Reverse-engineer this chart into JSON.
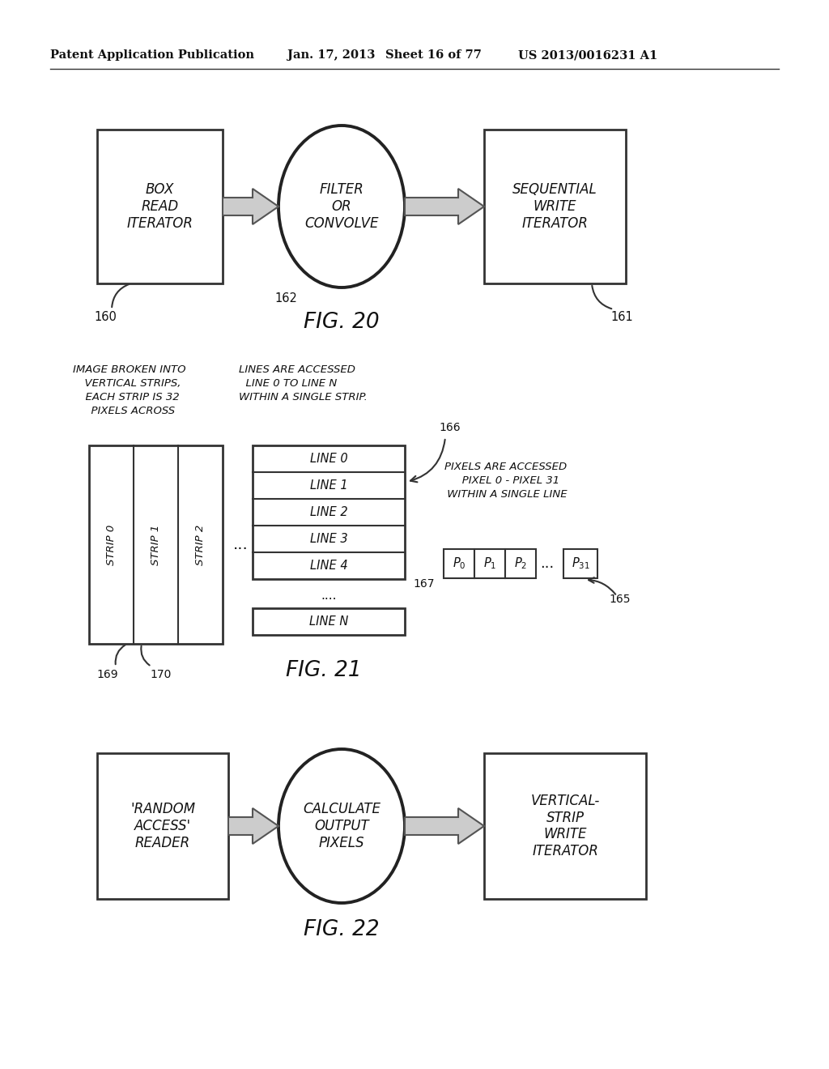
{
  "bg_color": "#ffffff",
  "header_text": "Patent Application Publication",
  "header_date": "Jan. 17, 2013",
  "header_sheet": "Sheet 16 of 77",
  "header_patent": "US 2013/0016231 A1",
  "fig20_title": "FIG. 20",
  "fig21_title": "FIG. 21",
  "fig22_title": "FIG. 22",
  "fig20_box1_text": "BOX\nREAD\nITERATOR",
  "fig20_box1_label": "160",
  "fig20_ellipse_text": "FILTER\nOR\nCONVOLVE",
  "fig20_ellipse_label": "162",
  "fig20_box2_text": "SEQUENTIAL\nWRITE\nITERATOR",
  "fig20_box2_label": "161",
  "fig21_annotation1": "IMAGE BROKEN INTO\n  VERTICAL STRIPS,\n  EACH STRIP IS 32\n  PIXELS ACROSS",
  "fig21_annotation2": "LINES ARE ACCESSED\n  LINE 0 TO LINE N\nWITHIN A SINGLE STRIP.",
  "fig21_annotation3": "PIXELS ARE ACCESSED\n   PIXEL 0 - PIXEL 31\n WITHIN A SINGLE LINE",
  "fig21_strip_labels": [
    "STRIP 0",
    "STRIP 1",
    "STRIP 2"
  ],
  "fig21_line_labels": [
    "LINE 0",
    "LINE 1",
    "LINE 2",
    "LINE 3",
    "LINE 4"
  ],
  "fig21_label_166": "166",
  "fig21_label_167": "167",
  "fig21_label_165": "165",
  "fig21_label_169": "169",
  "fig21_label_170": "170",
  "fig22_box1_text": "'RANDOM\nACCESS'\nREADER",
  "fig22_ellipse_text": "CALCULATE\nOUTPUT\nPIXELS",
  "fig22_box2_text": "VERTICAL-\nSTRIP\nWRITE\nITERATOR"
}
